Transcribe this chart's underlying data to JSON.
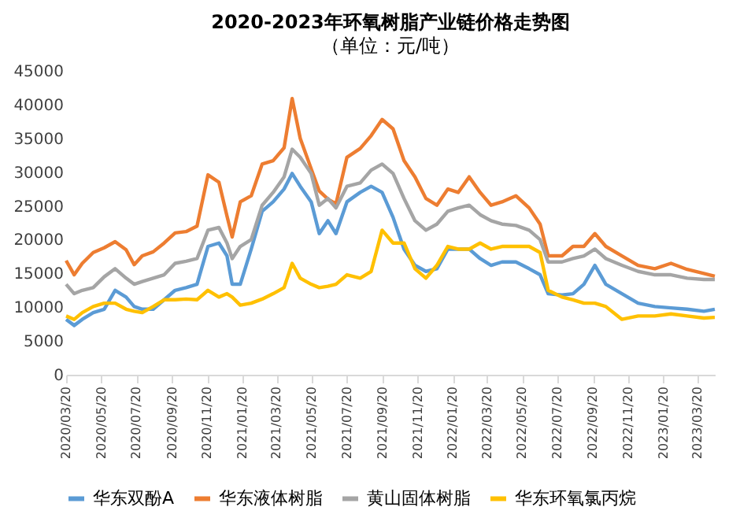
{
  "chart_data": {
    "type": "line",
    "title": "2020-2023年环氧树脂产业链价格走势图",
    "subtitle": "（单位：元/吨）",
    "x": [
      "2020-03-20",
      "2020-04-03",
      "2020-04-17",
      "2020-05-06",
      "2020-05-25",
      "2020-06-13",
      "2020-07-02",
      "2020-07-16",
      "2020-07-30",
      "2020-08-18",
      "2020-09-06",
      "2020-09-25",
      "2020-10-14",
      "2020-11-02",
      "2020-11-21",
      "2020-12-10",
      "2020-12-24",
      "2021-01-02",
      "2021-01-16",
      "2021-02-04",
      "2021-02-23",
      "2021-03-14",
      "2021-04-02",
      "2021-04-16",
      "2021-04-30",
      "2021-05-19",
      "2021-06-02",
      "2021-06-17",
      "2021-07-01",
      "2021-07-20",
      "2021-08-12",
      "2021-08-31",
      "2021-09-19",
      "2021-10-08",
      "2021-10-27",
      "2021-11-15",
      "2021-12-04",
      "2021-12-23",
      "2022-01-11",
      "2022-01-29",
      "2022-02-17",
      "2022-03-08",
      "2022-03-27",
      "2022-04-15",
      "2022-05-09",
      "2022-06-01",
      "2022-06-20",
      "2022-07-04",
      "2022-07-28",
      "2022-08-16",
      "2022-09-04",
      "2022-09-23",
      "2022-10-12",
      "2022-11-09",
      "2022-12-07",
      "2023-01-05",
      "2023-02-02",
      "2023-03-02",
      "2023-03-31",
      "2023-04-19"
    ],
    "series": [
      {
        "name": "华东双酚A",
        "color": "#5b9bd5",
        "values": [
          8200,
          7300,
          8200,
          9200,
          9700,
          12500,
          11500,
          10100,
          9700,
          9700,
          11100,
          12500,
          12900,
          13400,
          19000,
          19500,
          17600,
          13400,
          13400,
          18600,
          24200,
          25600,
          27500,
          29800,
          27900,
          25600,
          20900,
          22800,
          20900,
          25600,
          27000,
          27900,
          27000,
          23300,
          18600,
          16200,
          15300,
          15700,
          18600,
          18600,
          18600,
          17200,
          16200,
          16700,
          16700,
          15700,
          14800,
          12000,
          11800,
          12000,
          13400,
          16200,
          13400,
          12000,
          10600,
          10100,
          9900,
          9700,
          9400,
          9700
        ]
      },
      {
        "name": "华东液体树脂",
        "color": "#ed7d31",
        "values": [
          16900,
          14800,
          16500,
          18100,
          18800,
          19700,
          18500,
          16300,
          17600,
          18200,
          19500,
          21000,
          21200,
          22000,
          29600,
          28500,
          23500,
          20400,
          25600,
          26500,
          31200,
          31700,
          33600,
          40900,
          35000,
          30500,
          27200,
          26000,
          25300,
          32200,
          33500,
          35400,
          37800,
          36400,
          31700,
          29300,
          26100,
          25100,
          27500,
          27000,
          29300,
          27000,
          25100,
          25600,
          26500,
          24700,
          22300,
          17600,
          17600,
          19000,
          19000,
          20900,
          19000,
          17600,
          16200,
          15700,
          16500,
          15600,
          15000,
          14600
        ]
      },
      {
        "name": "黄山固体树脂",
        "color": "#a5a5a5",
        "values": [
          13400,
          12000,
          12500,
          12900,
          14500,
          15700,
          14300,
          13400,
          13800,
          14300,
          14800,
          16500,
          16800,
          17200,
          21400,
          21800,
          19500,
          17200,
          19000,
          20000,
          25100,
          27000,
          29300,
          33400,
          32200,
          29800,
          25100,
          26100,
          24700,
          27900,
          28400,
          30300,
          31200,
          29800,
          26100,
          22800,
          21400,
          22300,
          24200,
          24700,
          25100,
          23700,
          22800,
          22300,
          22100,
          21400,
          20000,
          16700,
          16700,
          17200,
          17600,
          18600,
          17200,
          16200,
          15300,
          14800,
          14800,
          14300,
          14100,
          14100
        ]
      },
      {
        "name": "华东环氧氯丙烷",
        "color": "#ffc000",
        "values": [
          8700,
          8200,
          9200,
          10100,
          10600,
          10600,
          9700,
          9400,
          9200,
          10100,
          11100,
          11100,
          11200,
          11100,
          12500,
          11500,
          12000,
          11500,
          10300,
          10600,
          11200,
          12000,
          12900,
          16500,
          14300,
          13400,
          12900,
          13100,
          13400,
          14800,
          14300,
          15300,
          21400,
          19500,
          19500,
          15700,
          14300,
          16200,
          19000,
          18600,
          18600,
          19500,
          18600,
          19000,
          19000,
          19000,
          18100,
          12500,
          11500,
          11100,
          10600,
          10600,
          10100,
          8200,
          8700,
          8700,
          9000,
          8700,
          8400,
          8500
        ]
      }
    ],
    "xlim": [
      "2020-03-20",
      "2023-04-19"
    ],
    "xticks": [
      {
        "value": "2020-03-20",
        "label": "2020/03/20"
      },
      {
        "value": "2020-05-20",
        "label": "2020/05/20"
      },
      {
        "value": "2020-07-20",
        "label": "2020/07/20"
      },
      {
        "value": "2020-09-20",
        "label": "2020/09/20"
      },
      {
        "value": "2020-11-20",
        "label": "2020/11/20"
      },
      {
        "value": "2021-01-20",
        "label": "2021/01/20"
      },
      {
        "value": "2021-03-20",
        "label": "2021/03/20"
      },
      {
        "value": "2021-05-20",
        "label": "2021/05/20"
      },
      {
        "value": "2021-07-20",
        "label": "2021/07/20"
      },
      {
        "value": "2021-09-20",
        "label": "2021/09/20"
      },
      {
        "value": "2021-11-20",
        "label": "2021/11/20"
      },
      {
        "value": "2022-01-20",
        "label": "2022/01/20"
      },
      {
        "value": "2022-03-20",
        "label": "2022/03/20"
      },
      {
        "value": "2022-05-20",
        "label": "2022/05/20"
      },
      {
        "value": "2022-07-20",
        "label": "2022/07/20"
      },
      {
        "value": "2022-09-20",
        "label": "2022/09/20"
      },
      {
        "value": "2022-11-20",
        "label": "2022/11/20"
      },
      {
        "value": "2023-01-20",
        "label": "2023/01/20"
      },
      {
        "value": "2023-03-20",
        "label": "2023/03/20"
      }
    ],
    "ylim": [
      0,
      45000
    ],
    "yticks": [
      0,
      5000,
      10000,
      15000,
      20000,
      25000,
      30000,
      35000,
      40000,
      45000
    ],
    "grid": false,
    "legend": "bottom",
    "marker": "none",
    "line_style": "solid"
  }
}
